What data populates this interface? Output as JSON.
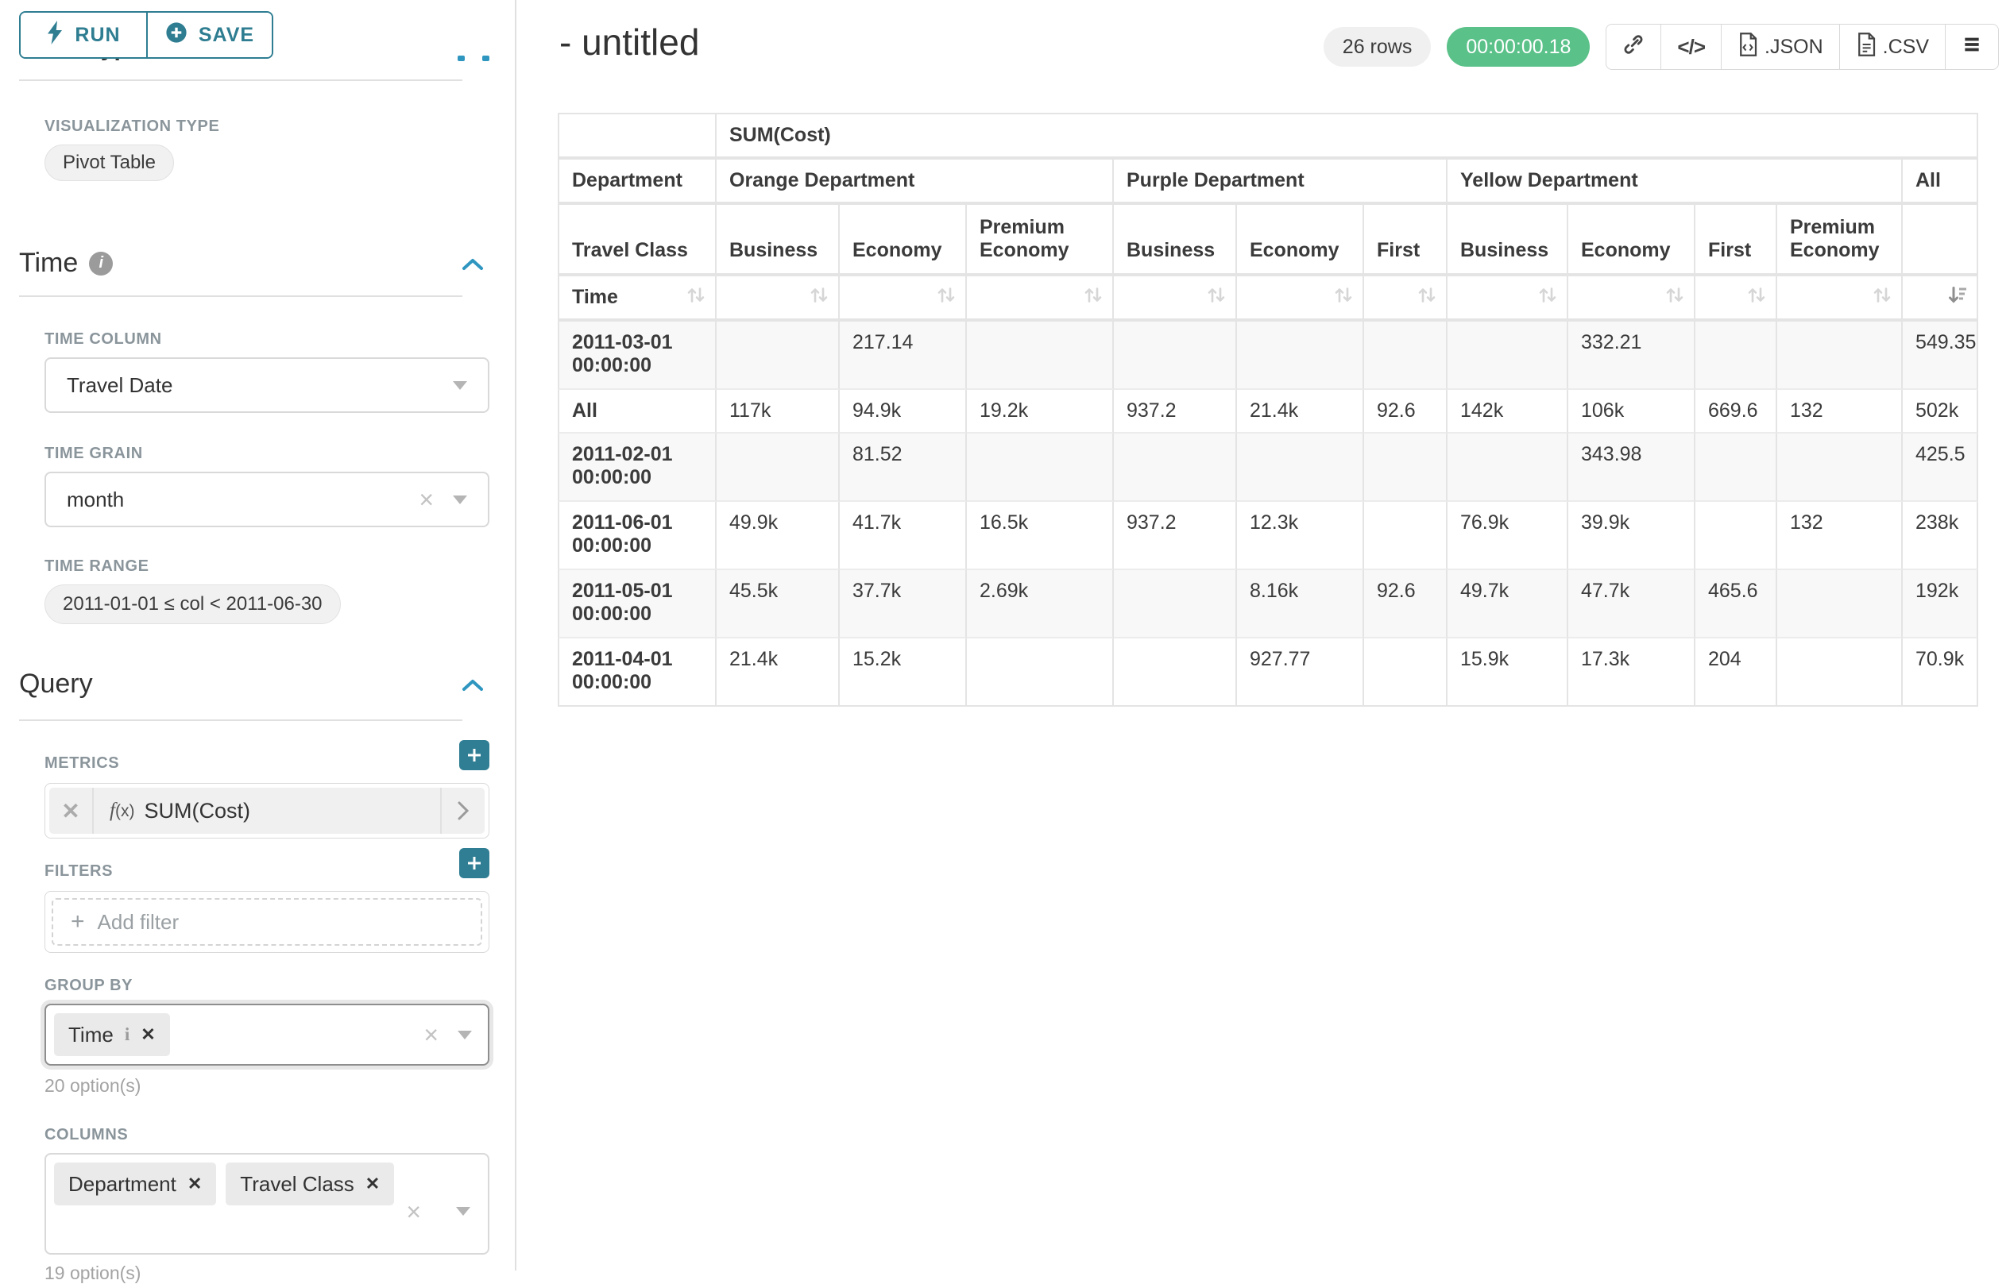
{
  "colors": {
    "accent_teal": "#2e7d91",
    "bright_teal": "#2f96c0",
    "success_green": "#5ac189",
    "badge_gray": "#f0f0f0"
  },
  "sidebar": {
    "run_label": "RUN",
    "save_label": "SAVE",
    "chart_type_heading": "Chart Type",
    "visualization_type": {
      "label": "VISUALIZATION TYPE",
      "value": "Pivot Table"
    },
    "time_section": {
      "heading": "Time"
    },
    "time_column": {
      "label": "TIME COLUMN",
      "value": "Travel Date"
    },
    "time_grain": {
      "label": "TIME GRAIN",
      "value": "month"
    },
    "time_range": {
      "label": "TIME RANGE",
      "value": "2011-01-01 ≤ col < 2011-06-30"
    },
    "query_section": {
      "heading": "Query"
    },
    "metrics": {
      "label": "METRICS",
      "fx_label": "(x)",
      "metric_name": "SUM(Cost)"
    },
    "filters": {
      "label": "FILTERS",
      "add_filter_label": "Add filter"
    },
    "group_by": {
      "label": "GROUP BY",
      "tags": [
        "Time"
      ],
      "options_note": "20 option(s)"
    },
    "columns": {
      "label": "COLUMNS",
      "tags": [
        "Department",
        "Travel Class"
      ],
      "options_note": "19 option(s)"
    }
  },
  "header": {
    "title": "- untitled",
    "rows_badge": "26 rows",
    "timer_badge": "00:00:00.18",
    "json_label": ".JSON",
    "csv_label": ".CSV"
  },
  "pivot": {
    "metric_header": "SUM(Cost)",
    "row_dim_label": "Department",
    "col_dim_label": "Travel Class",
    "time_label": "Time",
    "sort": {
      "active_column": "All",
      "direction": "desc"
    },
    "col_groups": [
      {
        "label": "Orange Department",
        "cols": [
          "Business",
          "Economy",
          "Premium Economy"
        ]
      },
      {
        "label": "Purple Department",
        "cols": [
          "Business",
          "Economy",
          "First"
        ]
      },
      {
        "label": "Yellow Department",
        "cols": [
          "Business",
          "Economy",
          "First",
          "Premium Economy"
        ]
      },
      {
        "label": "All",
        "cols": [
          ""
        ]
      }
    ],
    "rows": [
      {
        "label": "2011-03-01 00:00:00",
        "values": [
          "",
          "217.14",
          "",
          "",
          "",
          "",
          "",
          "332.21",
          "",
          "",
          "549.35"
        ]
      },
      {
        "label": "All",
        "values": [
          "117k",
          "94.9k",
          "19.2k",
          "937.2",
          "21.4k",
          "92.6",
          "142k",
          "106k",
          "669.6",
          "132",
          "502k"
        ]
      },
      {
        "label": "2011-02-01 00:00:00",
        "values": [
          "",
          "81.52",
          "",
          "",
          "",
          "",
          "",
          "343.98",
          "",
          "",
          "425.5"
        ]
      },
      {
        "label": "2011-06-01 00:00:00",
        "values": [
          "49.9k",
          "41.7k",
          "16.5k",
          "937.2",
          "12.3k",
          "",
          "76.9k",
          "39.9k",
          "",
          "132",
          "238k"
        ]
      },
      {
        "label": "2011-05-01 00:00:00",
        "values": [
          "45.5k",
          "37.7k",
          "2.69k",
          "",
          "8.16k",
          "92.6",
          "49.7k",
          "47.7k",
          "465.6",
          "",
          "192k"
        ]
      },
      {
        "label": "2011-04-01 00:00:00",
        "values": [
          "21.4k",
          "15.2k",
          "",
          "",
          "927.77",
          "",
          "15.9k",
          "17.3k",
          "204",
          "",
          "70.9k"
        ]
      }
    ]
  }
}
